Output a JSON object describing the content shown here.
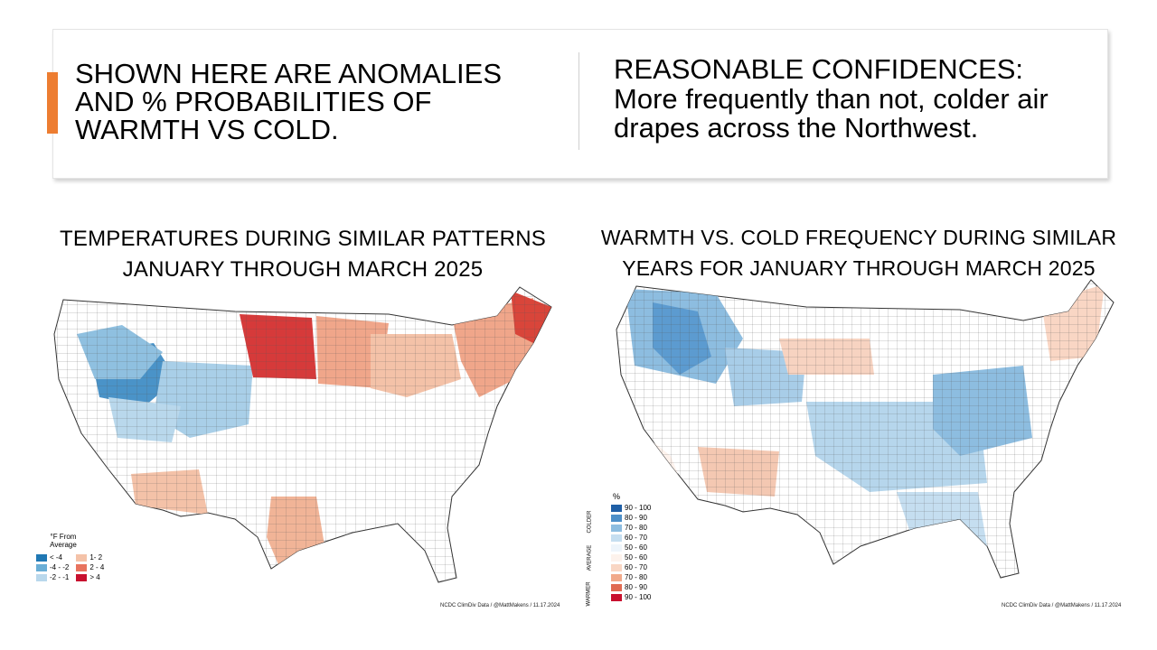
{
  "banner": {
    "left_text": "SHOWN HERE ARE ANOMALIES AND % PROBABILITIES OF WARMTH VS COLD.",
    "right_title": "REASONABLE CONFIDENCES:",
    "right_body": "More frequently than not, colder air drapes across the Northwest."
  },
  "left_map": {
    "title_line1": "TEMPERATURES DURING SIMILAR PATTERNS",
    "title_line2": "JANUARY THROUGH MARCH 2025",
    "legend_title_line1": "°F From",
    "legend_title_line2": "Average",
    "legend_items": [
      {
        "label": "< -4",
        "color": "#1f78b4"
      },
      {
        "label": "-4 - -2",
        "color": "#6aaed6"
      },
      {
        "label": "-2 - -1",
        "color": "#b9d8ec"
      },
      {
        "label": "1- 2",
        "color": "#f4c2a8"
      },
      {
        "label": "2 - 4",
        "color": "#e8735e"
      },
      {
        "label": "> 4",
        "color": "#c8102e"
      }
    ],
    "credit": "NCDC ClimDiv Data / @MattMakens / 11.17.2024"
  },
  "right_map": {
    "title_line1": "WARMTH VS. COLD FREQUENCY DURING SIMILAR",
    "title_line2": "YEARS FOR JANUARY THROUGH MARCH 2025",
    "legend_unit": "%",
    "legend_side_colder": "COLDER",
    "legend_side_average": "AVERAGE",
    "legend_side_warmer": "WARMER",
    "legend_items": [
      {
        "label": "90 - 100",
        "color": "#1f5fa6"
      },
      {
        "label": "80 - 90",
        "color": "#4d8fc8"
      },
      {
        "label": "70 - 80",
        "color": "#8dbde0"
      },
      {
        "label": "60 - 70",
        "color": "#c5def0"
      },
      {
        "label": "50 - 60",
        "color": "#eef5fb"
      },
      {
        "label": "50 - 60",
        "color": "#fdf2ec"
      },
      {
        "label": "60 - 70",
        "color": "#f9d6c4"
      },
      {
        "label": "70 - 80",
        "color": "#f1a98a"
      },
      {
        "label": "80 - 90",
        "color": "#e06a52"
      },
      {
        "label": "90 - 100",
        "color": "#c8102e"
      }
    ],
    "credit": "NCDC ClimDiv Data / @MattMakens / 11.17.2024"
  }
}
